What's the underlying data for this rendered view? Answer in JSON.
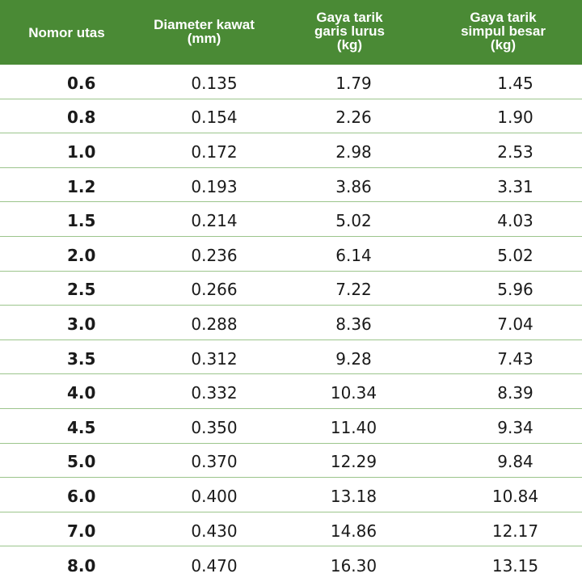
{
  "header": {
    "col1": "Nomor utas",
    "col2": [
      "Diameter kawat",
      "(mm)"
    ],
    "col3": [
      "Gaya tarik",
      "garis lurus",
      "(kg)"
    ],
    "col4": [
      "Gaya tarik",
      "simpul besar",
      "(kg)"
    ]
  },
  "rows": [
    [
      "0.6",
      "0.135",
      "1.79",
      "1.45"
    ],
    [
      "0.8",
      "0.154",
      "2.26",
      "1.90"
    ],
    [
      "1.0",
      "0.172",
      "2.98",
      "2.53"
    ],
    [
      "1.2",
      "0.193",
      "3.86",
      "3.31"
    ],
    [
      "1.5",
      "0.214",
      "5.02",
      "4.03"
    ],
    [
      "2.0",
      "0.236",
      "6.14",
      "5.02"
    ],
    [
      "2.5",
      "0.266",
      "7.22",
      "5.96"
    ],
    [
      "3.0",
      "0.288",
      "8.36",
      "7.04"
    ],
    [
      "3.5",
      "0.312",
      "9.28",
      "7.43"
    ],
    [
      "4.0",
      "0.332",
      "10.34",
      "8.39"
    ],
    [
      "4.5",
      "0.350",
      "11.40",
      "9.34"
    ],
    [
      "5.0",
      "0.370",
      "12.29",
      "9.84"
    ],
    [
      "6.0",
      "0.400",
      "13.18",
      "10.84"
    ],
    [
      "7.0",
      "0.430",
      "14.86",
      "12.17"
    ],
    [
      "8.0",
      "0.470",
      "16.30",
      "13.15"
    ]
  ],
  "colors": {
    "header_bg": "#4a8a35",
    "divider": "#9cc58c"
  }
}
